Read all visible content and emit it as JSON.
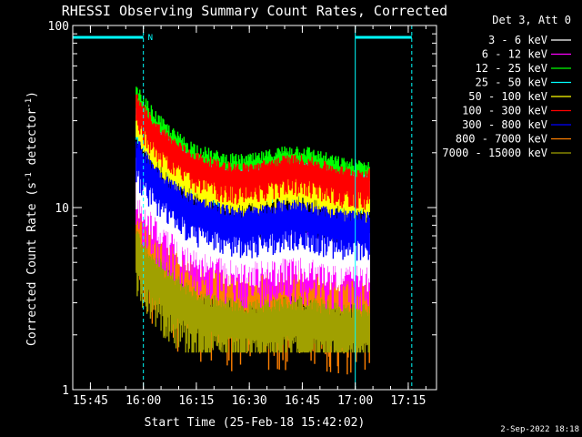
{
  "chart_data": {
    "type": "line",
    "title": "RHESSI Observing Summary Count Rates, Corrected",
    "xlabel": "Start Time (25-Feb-18 15:42:02)",
    "ylabel_main": "Corrected Count Rate (s",
    "ylabel_sup1": "-1",
    "ylabel_mid": " detector",
    "ylabel_sup2": "-1",
    "ylabel_end": ")",
    "yscale": "log",
    "ylim": [
      1,
      100
    ],
    "xlim": [
      "15:40",
      "17:23"
    ],
    "x_ticks": [
      "15:45",
      "16:00",
      "16:15",
      "16:30",
      "16:45",
      "17:00",
      "17:15"
    ],
    "y_ticks": [
      "1",
      "10",
      "100"
    ],
    "legend_header": "Det 3, Att 0",
    "legend_position": "top-right",
    "date_stamp": "2-Sep-2022 18:18",
    "night_marker_label": "N",
    "data_start": "15:58",
    "data_end": "17:04",
    "night_intervals": [
      [
        "15:40",
        "16:00"
      ],
      [
        "17:00",
        "17:16"
      ]
    ],
    "series": [
      {
        "name": "3 - 6 keV",
        "color": "#ffffff",
        "base": 5.6,
        "noise": 0.25,
        "min": 1,
        "hump": 0.6
      },
      {
        "name": "6 - 12 keV",
        "color": "#ff00ff",
        "base": 5.0,
        "noise": 0.3,
        "min": 2.0,
        "hump": 0.6
      },
      {
        "name": "12 - 25 keV",
        "color": "#00ff00",
        "base": 14.5,
        "noise": 0.22,
        "min": 5.2,
        "hump": 3.0
      },
      {
        "name": "25 - 50 keV",
        "color": "#00ffff",
        "base": 12.5,
        "noise": 0.18,
        "min": 6,
        "hump": 2.2
      },
      {
        "name": "50 - 100 keV",
        "color": "#ffff00",
        "base": 11.0,
        "noise": 0.18,
        "min": 6,
        "hump": 2.0
      },
      {
        "name": "100 - 300 keV",
        "color": "#ff0000",
        "base": 13.5,
        "noise": 0.18,
        "min": 7,
        "hump": 2.5
      },
      {
        "name": "300 - 800 keV",
        "color": "#0000ff",
        "base": 7.5,
        "noise": 0.22,
        "min": 4,
        "hump": 1.2
      },
      {
        "name": "800 - 7000 keV",
        "color": "#ff8000",
        "base": 4.0,
        "noise": 0.45,
        "min": 1,
        "hump": 0.5
      },
      {
        "name": "7000 - 15000 keV",
        "color": "#a0a000",
        "base": 2.2,
        "noise": 0.3,
        "min": 1.6,
        "hump": 0.2
      }
    ]
  }
}
